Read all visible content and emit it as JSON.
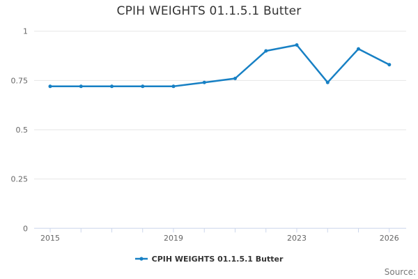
{
  "chart_data": {
    "type": "line",
    "title": "CPIH WEIGHTS 01.1.5.1 Butter",
    "x": [
      2015,
      2016,
      2017,
      2018,
      2019,
      2020,
      2021,
      2022,
      2023,
      2024,
      2025,
      2026
    ],
    "series": [
      {
        "name": "CPIH WEIGHTS 01.1.5.1 Butter",
        "values": [
          0.72,
          0.72,
          0.72,
          0.72,
          0.72,
          0.74,
          0.76,
          0.9,
          0.93,
          0.74,
          0.91,
          0.83
        ]
      }
    ],
    "xlabel": "",
    "ylabel": "",
    "ylim": [
      0,
      1
    ],
    "xlim": [
      2014.5,
      2026.55
    ],
    "yticks": [
      0,
      0.25,
      0.5,
      0.75,
      1
    ],
    "ytick_labels": [
      "0",
      "0.25",
      "0.5",
      "0.75",
      "1"
    ],
    "xtick_years": [
      2015,
      2019,
      2023,
      2026
    ],
    "xtick_labels": [
      "2015",
      "2019",
      "2023",
      "2026"
    ],
    "grid": true,
    "legend_position": "bottom",
    "colors": {
      "line": "#1780c4",
      "grid": "#e6e6e6",
      "axis": "#ccd6eb",
      "tick_label": "#666666",
      "title": "#333333",
      "source": "#777777"
    }
  },
  "legend": {
    "label": "CPIH WEIGHTS 01.1.5.1 Butter"
  },
  "footer": {
    "source_label": "Source:"
  }
}
